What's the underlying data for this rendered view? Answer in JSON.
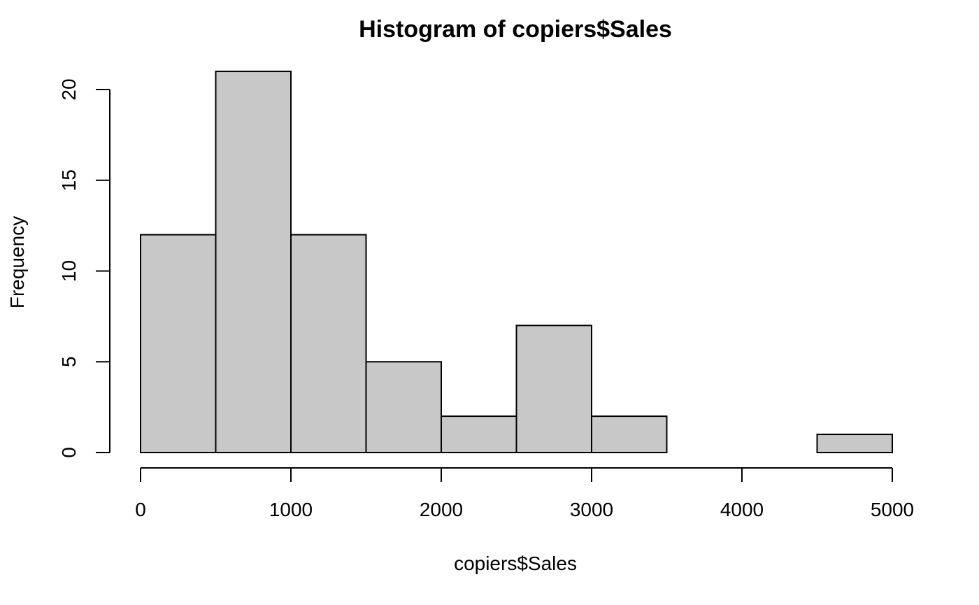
{
  "chart_data": {
    "type": "bar",
    "title": "Histogram of copiers$Sales",
    "xlabel": "copiers$Sales",
    "ylabel": "Frequency",
    "bins": [
      {
        "start": 0,
        "end": 500,
        "count": 12
      },
      {
        "start": 500,
        "end": 1000,
        "count": 21
      },
      {
        "start": 1000,
        "end": 1500,
        "count": 12
      },
      {
        "start": 1500,
        "end": 2000,
        "count": 5
      },
      {
        "start": 2000,
        "end": 2500,
        "count": 2
      },
      {
        "start": 2500,
        "end": 3000,
        "count": 7
      },
      {
        "start": 3000,
        "end": 3500,
        "count": 2
      },
      {
        "start": 3500,
        "end": 4000,
        "count": 0
      },
      {
        "start": 4000,
        "end": 4500,
        "count": 0
      },
      {
        "start": 4500,
        "end": 5000,
        "count": 1
      }
    ],
    "x_ticks": [
      0,
      1000,
      2000,
      3000,
      4000,
      5000
    ],
    "y_ticks": [
      0,
      5,
      10,
      15,
      20
    ],
    "xlim": [
      0,
      5000
    ],
    "ylim": [
      0,
      21
    ],
    "grid": false,
    "bar_color": "#c8c8c8",
    "edge_color": "#000000"
  }
}
